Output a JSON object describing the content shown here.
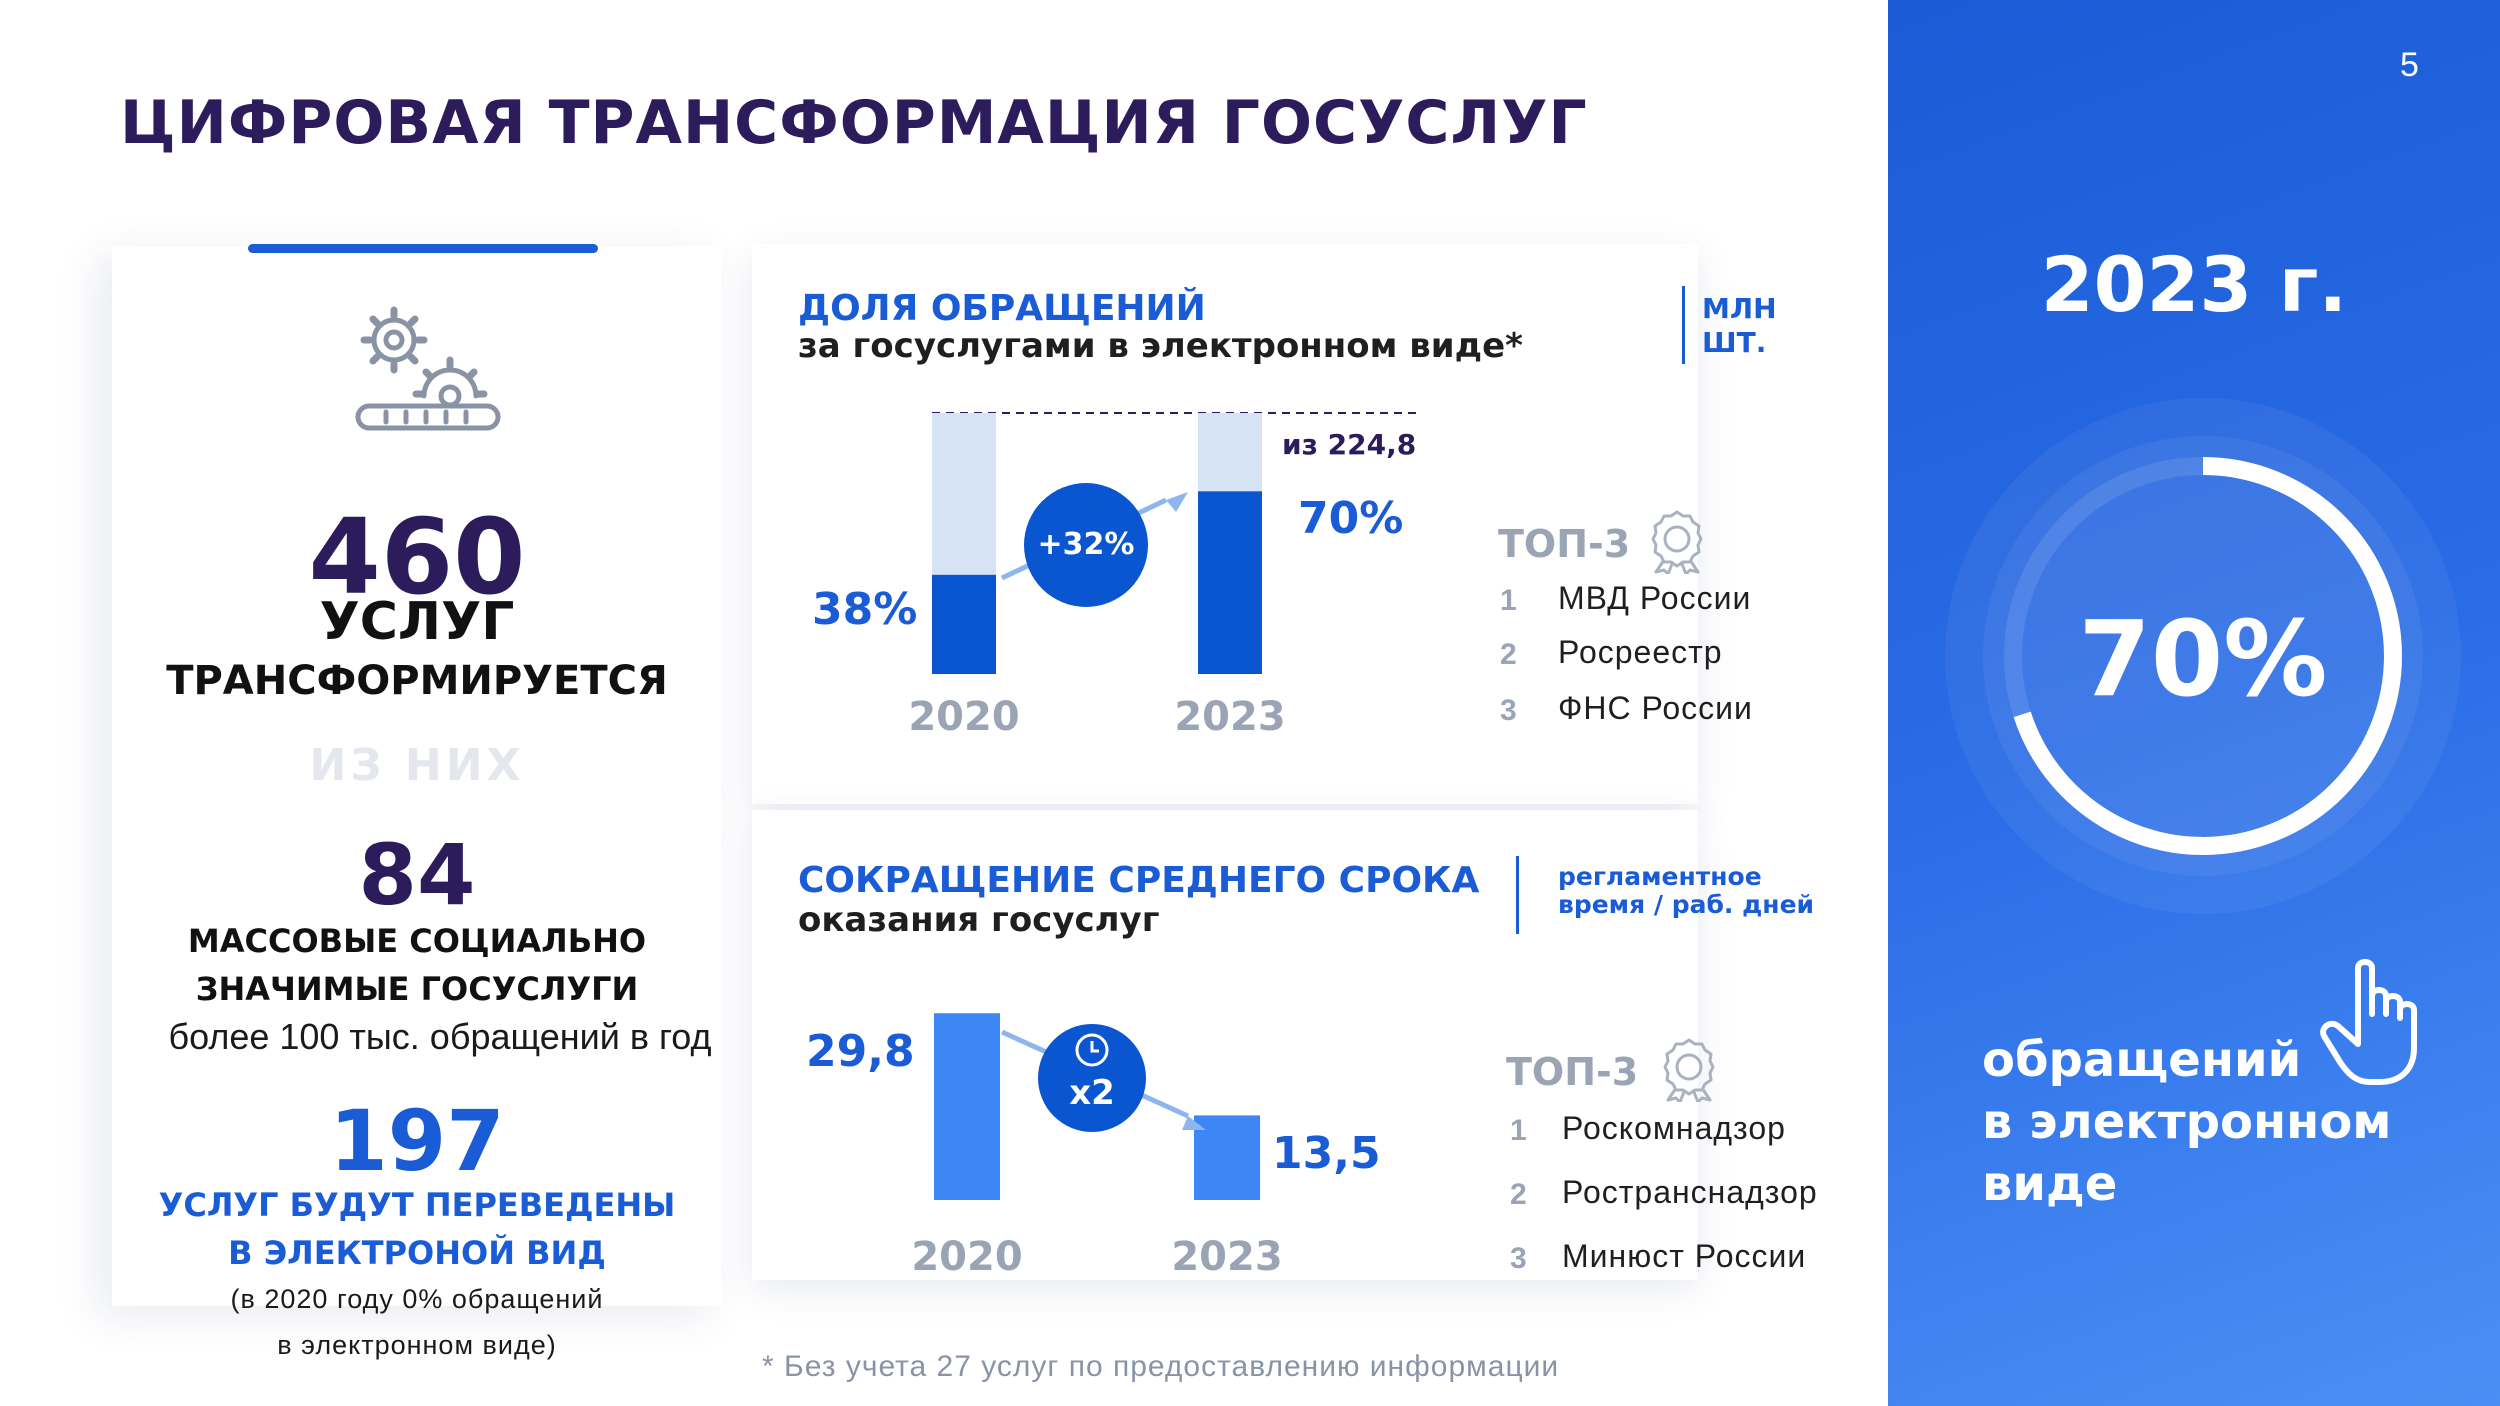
{
  "page_number": "5",
  "title": "ЦИФРОВАЯ ТРАНСФОРМАЦИЯ ГОСУСЛУГ",
  "left": {
    "count_main": "460",
    "label_main_1": "УСЛУГ",
    "label_main_2": "ТРАНСФОРМИРУЕТСЯ",
    "of_them": "ИЗ НИХ",
    "count_mass": "84",
    "label_mass_1": "МАССОВЫЕ СОЦИАЛЬНО",
    "label_mass_2": "ЗНАЧИМЫЕ ГОСУСЛУГИ",
    "label_mass_3": "более 100 тыс. обращений в год",
    "count_digital": "197",
    "label_digital_1": "УСЛУГ БУДУТ ПЕРЕВЕДЕНЫ",
    "label_digital_2": "В ЭЛЕКТРОНОЙ ВИД",
    "note_1": "(в 2020 году 0% обращений",
    "note_2": "в электронном виде)",
    "icon": "gears-conveyor-icon"
  },
  "share_chart": {
    "title_1": "ДОЛЯ ОБРАЩЕНИЙ",
    "title_2": "за госуслугами в электронном виде*",
    "unit_1": "МЛН",
    "unit_2": "ШТ.",
    "total_label": "из 224,8",
    "growth": "+32%",
    "top_title": "ТОП-3",
    "top": [
      {
        "rank": "1",
        "name": "МВД России"
      },
      {
        "rank": "2",
        "name": "Росреестр"
      },
      {
        "rank": "3",
        "name": "ФНС России"
      }
    ]
  },
  "time_chart": {
    "title_1": "СОКРАЩЕНИЕ СРЕДНЕГО СРОКА",
    "title_2": "оказания госуслуг",
    "unit_1": "регламентное",
    "unit_2": "время / раб. дней",
    "factor": "x2",
    "top_title": "ТОП-3",
    "top": [
      {
        "rank": "1",
        "name": "Роскомнадзор"
      },
      {
        "rank": "2",
        "name": "Ространснадзор"
      },
      {
        "rank": "3",
        "name": "Минюст России"
      }
    ]
  },
  "footnote": "* Без учета 27 услуг по предоставлению информации",
  "right": {
    "year": "2023 г.",
    "percent": "70%",
    "caption_1": "обращений",
    "caption_2": "в электронном",
    "caption_3": "виде",
    "percent_value": 70,
    "icon": "pointing-hand-icon"
  },
  "chart_data": [
    {
      "type": "bar",
      "categories": [
        "2020",
        "2023"
      ],
      "values": [
        38,
        70
      ],
      "value_labels": [
        "38%",
        "70%"
      ],
      "ylim": [
        0,
        100
      ],
      "colors": {
        "fill": "#0a55d0",
        "remainder": "#d6e3f5"
      }
    },
    {
      "type": "bar",
      "categories": [
        "2020",
        "2023"
      ],
      "values": [
        29.8,
        13.5
      ],
      "value_labels": [
        "29,8",
        "13,5"
      ],
      "ylim": [
        0,
        30
      ],
      "colors": {
        "fill": "#3d86f5"
      }
    }
  ],
  "colors": {
    "title": "#2d1c5c",
    "accent": "#1a5bd6",
    "bar_dark": "#0a55d0",
    "bar_light": "#d6e3f5",
    "bar_mid": "#3d86f5"
  }
}
